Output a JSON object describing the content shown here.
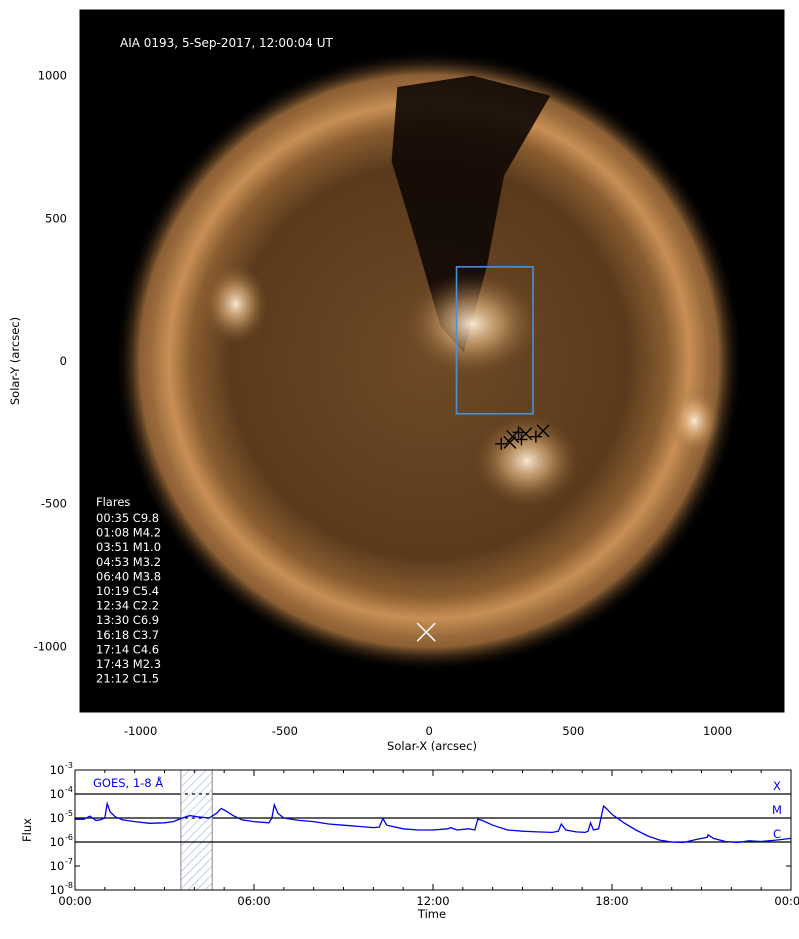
{
  "image_panel": {
    "title": "AIA 0193, 5-Sep-2017, 12:00:04 UT",
    "xlabel": "Solar-X (arcsec)",
    "ylabel": "Solar-Y (arcsec)",
    "xlim": [
      -1210,
      1230
    ],
    "ylim": [
      -1230,
      1230
    ],
    "x_ticks": [
      -1000,
      -500,
      0,
      500,
      1000
    ],
    "y_ticks": [
      1000,
      500,
      0,
      -500,
      -1000
    ],
    "x_tick_labels": [
      "-1000",
      "-500",
      "0",
      "500",
      "1000"
    ],
    "y_tick_labels": [
      "1000",
      "500",
      "0",
      "-500",
      "-1000"
    ],
    "box": {
      "x0": 95,
      "x1": 360,
      "y0": -185,
      "y1": 330,
      "color": "#4a8fd8"
    },
    "flares_heading": "Flares",
    "flares": [
      "00:35 C9.8",
      "01:08 M4.2",
      "03:51 M1.0",
      "04:53 M3.2",
      "06:40 M3.8",
      "10:19 C5.4",
      "12:34 C2.2",
      "13:30 C6.9",
      "16:18 C3.7",
      "17:14 C4.6",
      "17:43 M2.3",
      "21:12 C1.5"
    ],
    "flare_markers": [
      [
        250,
        -290
      ],
      [
        290,
        -265
      ],
      [
        320,
        -275
      ],
      [
        335,
        -255
      ],
      [
        370,
        -265
      ],
      [
        395,
        -245
      ],
      [
        310,
        -250
      ],
      [
        280,
        -285
      ]
    ],
    "limb_marker": [
      -10,
      -950
    ]
  },
  "chart_data": {
    "type": "line",
    "title": "GOES, 1-8 Å",
    "xlabel": "Time",
    "ylabel": "Flux",
    "x_unit": "hours",
    "xlim": [
      0,
      24
    ],
    "ylim_exp": [
      -8,
      -3
    ],
    "x_tick_labels": [
      "00:00",
      "06:00",
      "12:00",
      "18:00",
      "00:00"
    ],
    "y_tick_mantissa": [
      "10",
      "10",
      "10",
      "10",
      "10",
      "10"
    ],
    "y_tick_exponents": [
      "-8",
      "-7",
      "-6",
      "-5",
      "-4",
      "-3"
    ],
    "class_lines": [
      {
        "label": "X",
        "exp": -4
      },
      {
        "label": "M",
        "exp": -5
      },
      {
        "label": "C",
        "exp": -6
      }
    ],
    "shaded_interval": [
      3.55,
      4.6
    ],
    "series": [
      {
        "color": "#0000ee",
        "points": [
          [
            0.0,
            -5.05
          ],
          [
            0.3,
            -5.05
          ],
          [
            0.5,
            -4.92
          ],
          [
            0.58,
            -5.0
          ],
          [
            0.7,
            -5.1
          ],
          [
            0.85,
            -5.08
          ],
          [
            1.0,
            -5.0
          ],
          [
            1.08,
            -4.4
          ],
          [
            1.18,
            -4.75
          ],
          [
            1.35,
            -4.95
          ],
          [
            1.6,
            -5.08
          ],
          [
            2.0,
            -5.15
          ],
          [
            2.5,
            -5.22
          ],
          [
            3.0,
            -5.2
          ],
          [
            3.3,
            -5.15
          ],
          [
            3.55,
            -5.02
          ],
          [
            3.85,
            -4.9
          ],
          [
            4.1,
            -4.95
          ],
          [
            4.5,
            -5.0
          ],
          [
            4.75,
            -4.8
          ],
          [
            4.9,
            -4.6
          ],
          [
            5.05,
            -4.7
          ],
          [
            5.3,
            -4.9
          ],
          [
            5.6,
            -5.08
          ],
          [
            6.0,
            -5.15
          ],
          [
            6.3,
            -5.18
          ],
          [
            6.5,
            -5.2
          ],
          [
            6.6,
            -5.0
          ],
          [
            6.68,
            -4.45
          ],
          [
            6.8,
            -4.8
          ],
          [
            7.0,
            -5.0
          ],
          [
            7.5,
            -5.1
          ],
          [
            8.0,
            -5.15
          ],
          [
            8.5,
            -5.25
          ],
          [
            9.0,
            -5.3
          ],
          [
            9.5,
            -5.35
          ],
          [
            10.0,
            -5.4
          ],
          [
            10.2,
            -5.38
          ],
          [
            10.32,
            -5.02
          ],
          [
            10.45,
            -5.3
          ],
          [
            11.0,
            -5.45
          ],
          [
            11.5,
            -5.5
          ],
          [
            12.0,
            -5.5
          ],
          [
            12.5,
            -5.45
          ],
          [
            12.6,
            -5.4
          ],
          [
            12.8,
            -5.5
          ],
          [
            13.2,
            -5.45
          ],
          [
            13.4,
            -5.5
          ],
          [
            13.5,
            -5.05
          ],
          [
            13.65,
            -5.1
          ],
          [
            14.0,
            -5.3
          ],
          [
            14.5,
            -5.5
          ],
          [
            15.0,
            -5.55
          ],
          [
            15.5,
            -5.58
          ],
          [
            16.0,
            -5.6
          ],
          [
            16.2,
            -5.55
          ],
          [
            16.3,
            -5.25
          ],
          [
            16.45,
            -5.5
          ],
          [
            16.8,
            -5.58
          ],
          [
            17.1,
            -5.6
          ],
          [
            17.2,
            -5.55
          ],
          [
            17.28,
            -5.2
          ],
          [
            17.38,
            -5.5
          ],
          [
            17.55,
            -5.45
          ],
          [
            17.72,
            -4.5
          ],
          [
            17.85,
            -4.65
          ],
          [
            18.0,
            -4.85
          ],
          [
            18.4,
            -5.2
          ],
          [
            18.8,
            -5.5
          ],
          [
            19.2,
            -5.75
          ],
          [
            19.6,
            -5.92
          ],
          [
            20.0,
            -6.0
          ],
          [
            20.4,
            -6.02
          ],
          [
            20.8,
            -5.9
          ],
          [
            21.2,
            -5.8
          ],
          [
            21.22,
            -5.7
          ],
          [
            21.4,
            -5.85
          ],
          [
            21.8,
            -5.98
          ],
          [
            22.2,
            -6.02
          ],
          [
            22.6,
            -5.95
          ],
          [
            23.0,
            -5.98
          ],
          [
            23.5,
            -5.92
          ],
          [
            24.0,
            -5.85
          ]
        ]
      }
    ]
  }
}
